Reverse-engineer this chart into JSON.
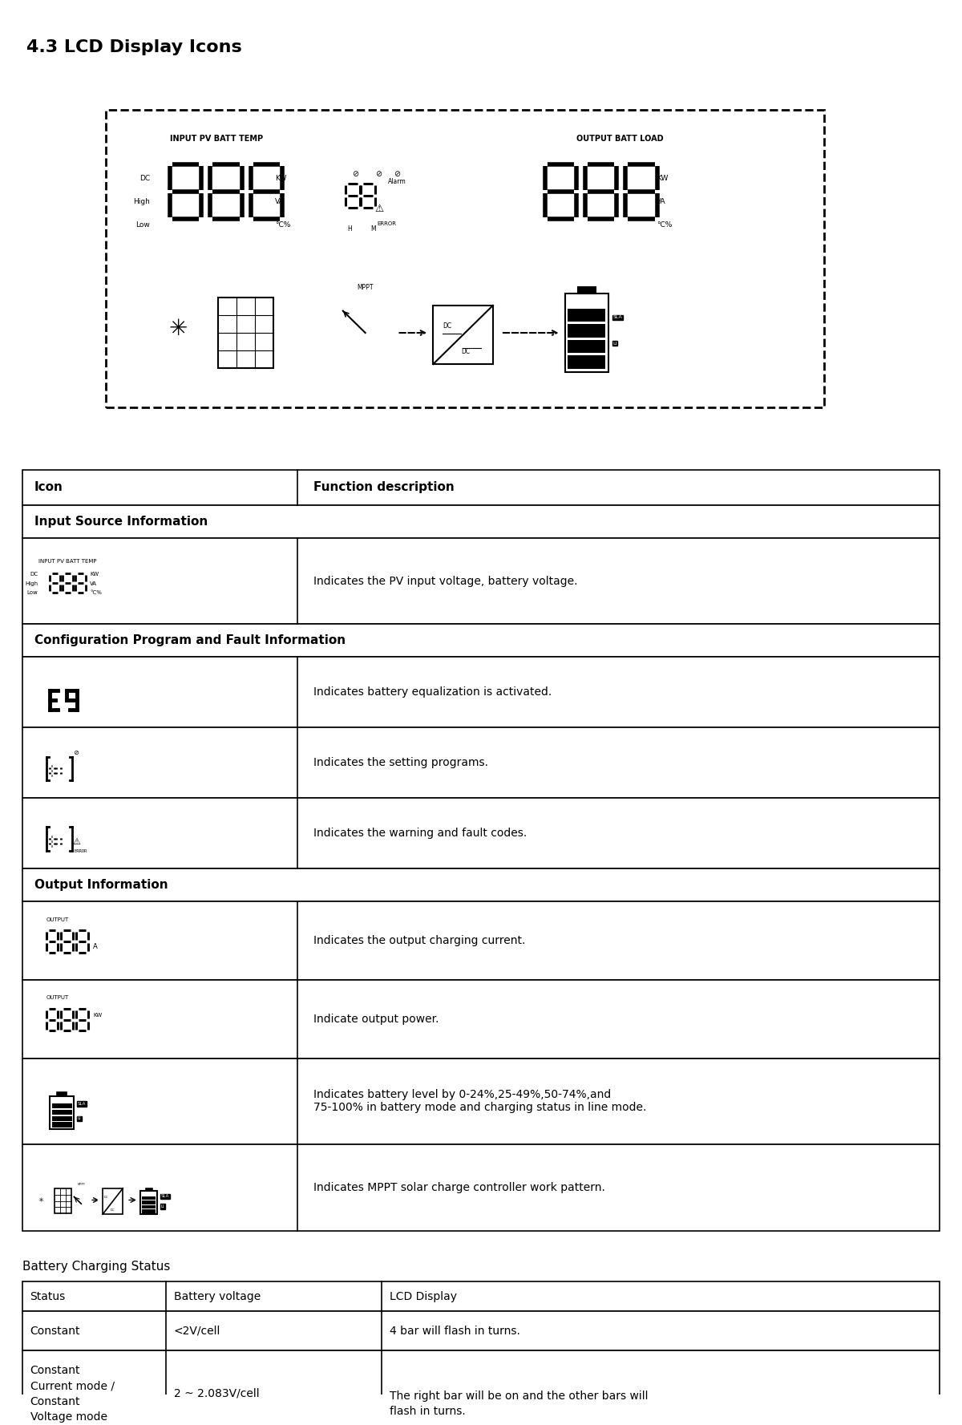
{
  "title": "4.3 LCD Display Icons",
  "bg_color": "#ffffff",
  "text_color": "#000000",
  "table_header": [
    "Icon",
    "Function description"
  ],
  "section_headers": [
    "Input Source Information",
    "Configuration Program and Fault Information",
    "Output Information"
  ],
  "rows": [
    {
      "section": "Input Source Information",
      "desc": "Indicates the PV input voltage, battery voltage."
    },
    {
      "section": "Configuration Program and Fault Information",
      "items": [
        {
          "desc": "Indicates battery equalization is activated."
        },
        {
          "desc": "Indicates the setting programs."
        },
        {
          "desc": "Indicates the warning and fault codes."
        }
      ]
    },
    {
      "section": "Output Information",
      "items": [
        {
          "desc": "Indicates the output charging current."
        },
        {
          "desc": "Indicate output power."
        },
        {
          "desc": "Indicates battery level by 0-24%,25-49%,50-74%,and\n75-100% in battery mode and charging status in line mode."
        },
        {
          "desc": "Indicates MPPT solar charge controller work pattern."
        }
      ]
    }
  ],
  "battery_charging_title": "Battery Charging Status",
  "battery_table_headers": [
    "Status",
    "Battery voltage",
    "LCD Display"
  ],
  "battery_rows": [
    [
      "Constant",
      "<2V/cell",
      "4 bar will flash in turns."
    ],
    [
      "Constant\nCurrent mode /\nConstant\nVoltage mode",
      "2 ~ 2.083V/cell",
      "The right bar will be on and the other bars will\nflash in turns."
    ]
  ]
}
